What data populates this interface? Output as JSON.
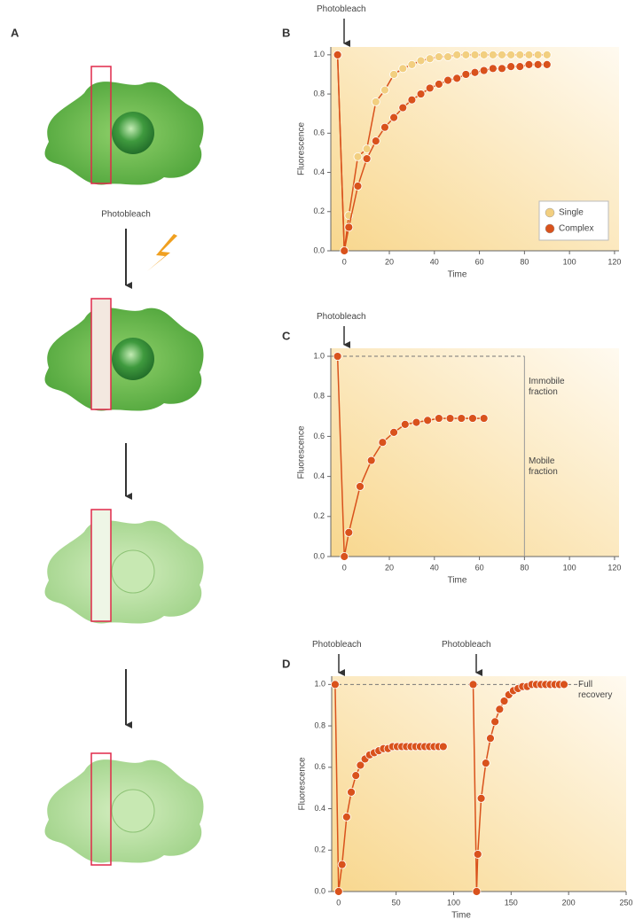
{
  "panel_a": {
    "label": "A",
    "annotation": "Photobleach"
  },
  "chart_data": [
    {
      "type": "line",
      "panel_label": "B",
      "ylabel": "Fluorescence",
      "xlabel": "Time",
      "xlim": [
        -6,
        122
      ],
      "xticks": [
        0,
        20,
        40,
        60,
        80,
        100,
        120
      ],
      "ylim": [
        0,
        1.04
      ],
      "yticks": [
        {
          "value": 0,
          "label": "0.0"
        },
        0.2,
        0.4,
        0.6,
        0.8,
        {
          "value": 1,
          "label": "1.0"
        }
      ],
      "legend": "lower right",
      "annotations": [
        "Photobleach"
      ],
      "series": [
        {
          "name": "Single",
          "color": "#f2cf80",
          "x": [
            -3,
            0,
            2,
            6,
            10,
            14,
            18,
            22,
            26,
            30,
            34,
            38,
            42,
            46,
            50,
            54,
            58,
            62,
            66,
            70,
            74,
            78,
            82,
            86,
            90
          ],
          "values": [
            1.0,
            0.0,
            0.18,
            0.48,
            0.52,
            0.76,
            0.82,
            0.9,
            0.93,
            0.95,
            0.97,
            0.98,
            0.99,
            0.99,
            1.0,
            1.0,
            1.0,
            1.0,
            1.0,
            1.0,
            1.0,
            1.0,
            1.0,
            1.0,
            1.0
          ]
        },
        {
          "name": "Complex",
          "color": "#d9521c",
          "x": [
            -3,
            0,
            2,
            6,
            10,
            14,
            18,
            22,
            26,
            30,
            34,
            38,
            42,
            46,
            50,
            54,
            58,
            62,
            66,
            70,
            74,
            78,
            82,
            86,
            90
          ],
          "values": [
            1.0,
            0.0,
            0.12,
            0.33,
            0.47,
            0.56,
            0.63,
            0.68,
            0.73,
            0.77,
            0.8,
            0.83,
            0.85,
            0.87,
            0.88,
            0.9,
            0.91,
            0.92,
            0.93,
            0.93,
            0.94,
            0.94,
            0.95,
            0.95,
            0.95
          ]
        }
      ]
    },
    {
      "type": "line",
      "panel_label": "C",
      "ylabel": "Fluorescence",
      "xlabel": "Time",
      "xlim": [
        -6,
        122
      ],
      "xticks": [
        0,
        20,
        40,
        60,
        80,
        100,
        120
      ],
      "ylim": [
        0,
        1.04
      ],
      "yticks": [
        {
          "value": 0,
          "label": "0.0"
        },
        0.2,
        0.4,
        0.6,
        0.8,
        {
          "value": 1,
          "label": "1.0"
        }
      ],
      "reference_y": 1,
      "reference_x": 80,
      "annotations": [
        "Photobleach",
        "Immobile fraction",
        "Mobile fraction"
      ],
      "series": [
        {
          "color": "#d9521c",
          "x": [
            -3,
            0,
            2,
            7,
            12,
            17,
            22,
            27,
            32,
            37,
            42,
            47,
            52,
            57,
            62
          ],
          "values": [
            1,
            0,
            0.12,
            0.35,
            0.48,
            0.57,
            0.62,
            0.66,
            0.67,
            0.68,
            0.69,
            0.69,
            0.69,
            0.69,
            0.69
          ]
        }
      ]
    },
    {
      "type": "line",
      "panel_label": "D",
      "ylabel": "Fluorescence",
      "xlabel": "Time",
      "xlim": [
        -6,
        250
      ],
      "xticks": [
        0,
        50,
        100,
        150,
        200,
        250
      ],
      "ylim": [
        0,
        1.04
      ],
      "yticks": [
        {
          "value": 0,
          "label": "0.0"
        },
        0.2,
        0.4,
        0.6,
        0.8,
        {
          "value": 1,
          "label": "1.0"
        }
      ],
      "reference_y": 1,
      "annotations": [
        "Photobleach",
        "Photobleach",
        "Full recovery"
      ],
      "series": [
        {
          "color": "#d9521c",
          "x": [
            -3,
            0,
            3,
            7,
            11,
            15,
            19,
            23,
            27,
            31,
            35,
            39,
            43,
            47,
            51,
            55,
            59,
            63,
            67,
            71,
            75,
            79,
            83,
            87,
            91
          ],
          "values": [
            1,
            0,
            0.13,
            0.36,
            0.48,
            0.56,
            0.61,
            0.64,
            0.66,
            0.67,
            0.68,
            0.69,
            0.69,
            0.7,
            0.7,
            0.7,
            0.7,
            0.7,
            0.7,
            0.7,
            0.7,
            0.7,
            0.7,
            0.7,
            0.7
          ]
        },
        {
          "color": "#d9521c",
          "x": [
            117,
            120,
            121,
            124,
            128,
            132,
            136,
            140,
            144,
            148,
            152,
            156,
            160,
            164,
            168,
            172,
            176,
            180,
            184,
            188,
            192,
            196
          ],
          "values": [
            1,
            0,
            0.18,
            0.45,
            0.62,
            0.74,
            0.82,
            0.88,
            0.92,
            0.95,
            0.97,
            0.98,
            0.99,
            0.99,
            1,
            1,
            1,
            1,
            1,
            1,
            1,
            1
          ]
        }
      ]
    }
  ]
}
